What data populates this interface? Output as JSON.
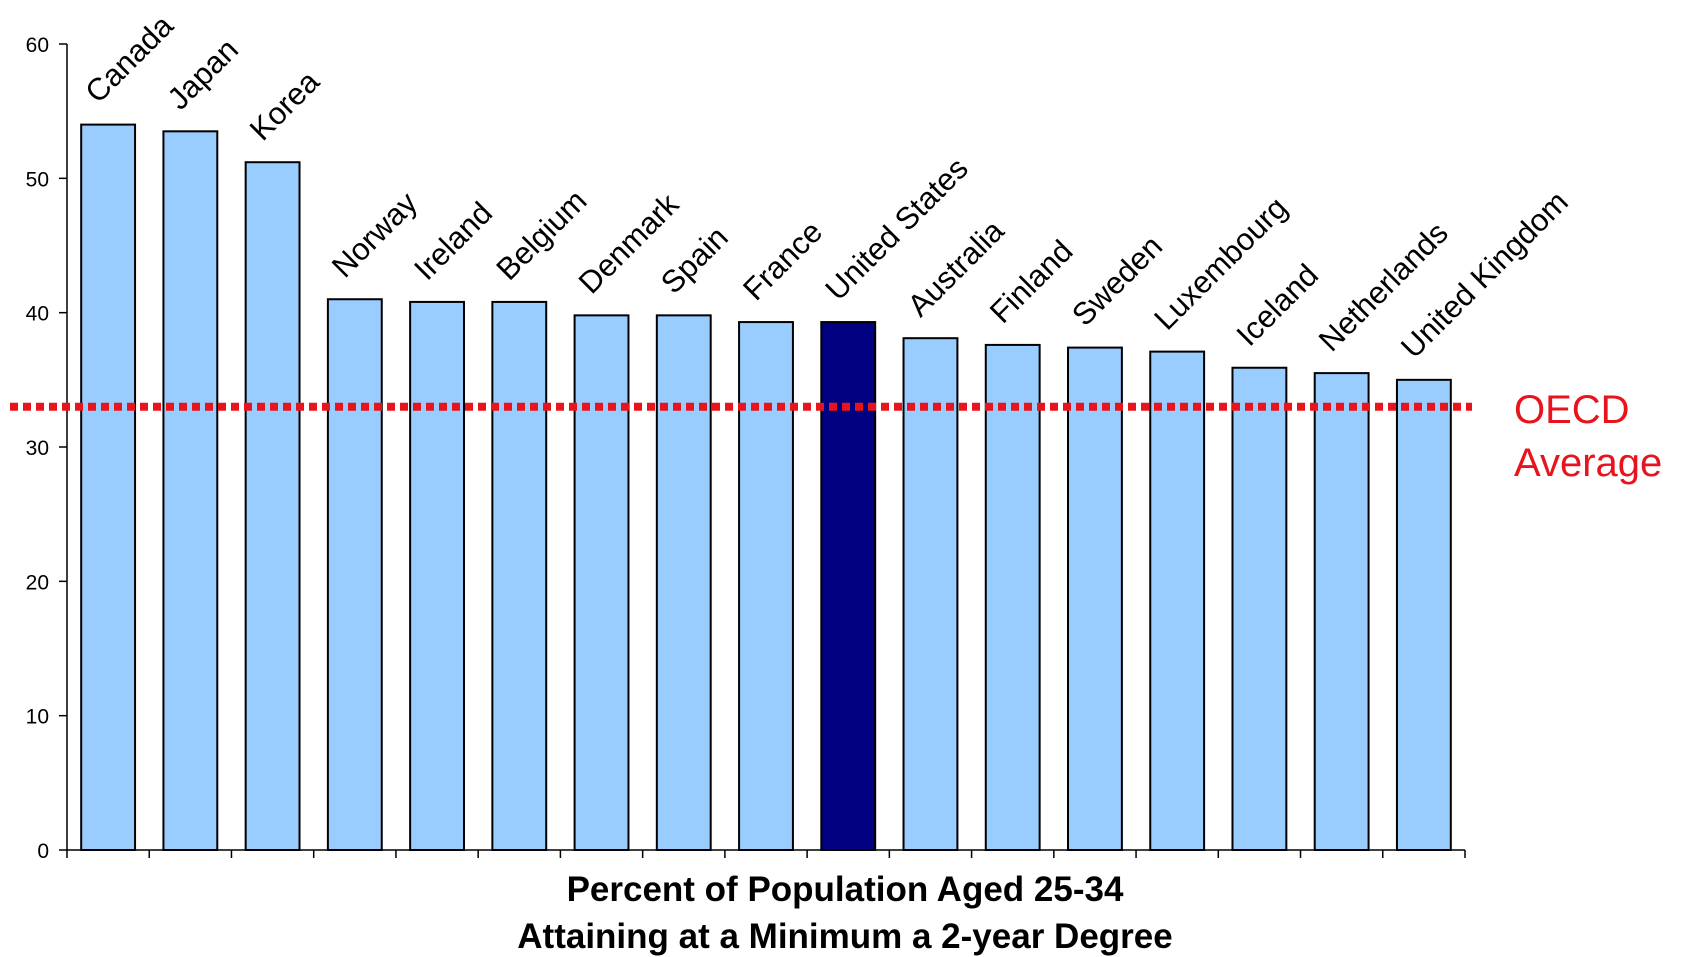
{
  "chart_data": {
    "type": "bar",
    "categories": [
      "Canada",
      "Japan",
      "Korea",
      "Norway",
      "Ireland",
      "Belgium",
      "Denmark",
      "Spain",
      "France",
      "United States",
      "Australia",
      "Finland",
      "Sweden",
      "Luxembourg",
      "Iceland",
      "Netherlands",
      "United Kingdom"
    ],
    "values": [
      54,
      53.5,
      51.2,
      41,
      40.8,
      40.8,
      39.8,
      39.8,
      39.3,
      39.3,
      38.1,
      37.6,
      37.4,
      37.1,
      35.9,
      35.5,
      35
    ],
    "highlight": "United States",
    "ylim": [
      0,
      60
    ],
    "yticks": [
      0,
      10,
      20,
      30,
      40,
      50,
      60
    ],
    "xlabel_lines": [
      "Percent of Population Aged 25-34",
      "Attaining at a Minimum a 2-year Degree"
    ],
    "ylabel": "",
    "reference_line": {
      "value": 33,
      "label_lines": [
        "OECD",
        "Average"
      ],
      "color": "#e8141d",
      "style": "dotted"
    },
    "grid": false,
    "colors": {
      "bar": "#99ccff",
      "bar_highlight": "#000080",
      "bar_outline": "#000000",
      "axis": "#000000"
    }
  }
}
